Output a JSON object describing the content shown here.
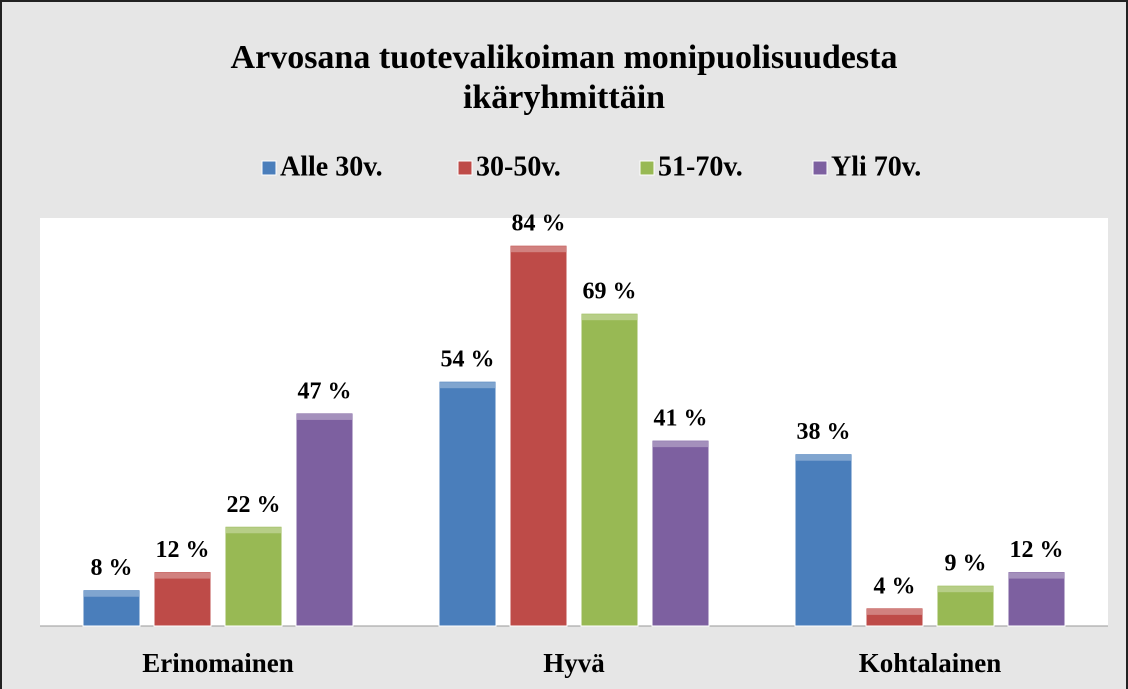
{
  "chart_data": {
    "type": "bar",
    "title": [
      "Arvosana tuotevalikoiman monipuolisuudesta",
      "ikäryhmittäin"
    ],
    "categories": [
      "Erinomainen",
      "Hyvä",
      "Kohtalainen"
    ],
    "series": [
      {
        "name": "Alle 30v.",
        "color": "#4a7ebb",
        "values": [
          8,
          54,
          38
        ],
        "value_labels": [
          "8 %",
          "54 %",
          "38 %"
        ]
      },
      {
        "name": "30-50v.",
        "color": "#be4b48",
        "values": [
          12,
          84,
          4
        ],
        "value_labels": [
          "12 %",
          "84 %",
          "4 %"
        ]
      },
      {
        "name": "51-70v.",
        "color": "#98b954",
        "values": [
          22,
          69,
          9
        ],
        "value_labels": [
          "22 %",
          "69 %",
          "9 %"
        ]
      },
      {
        "name": "Yli 70v.",
        "color": "#7d60a0",
        "values": [
          47,
          41,
          12
        ],
        "value_labels": [
          "47 %",
          "41 %",
          "12 %"
        ]
      }
    ],
    "ylim": [
      0,
      90
    ],
    "legend": "top"
  }
}
